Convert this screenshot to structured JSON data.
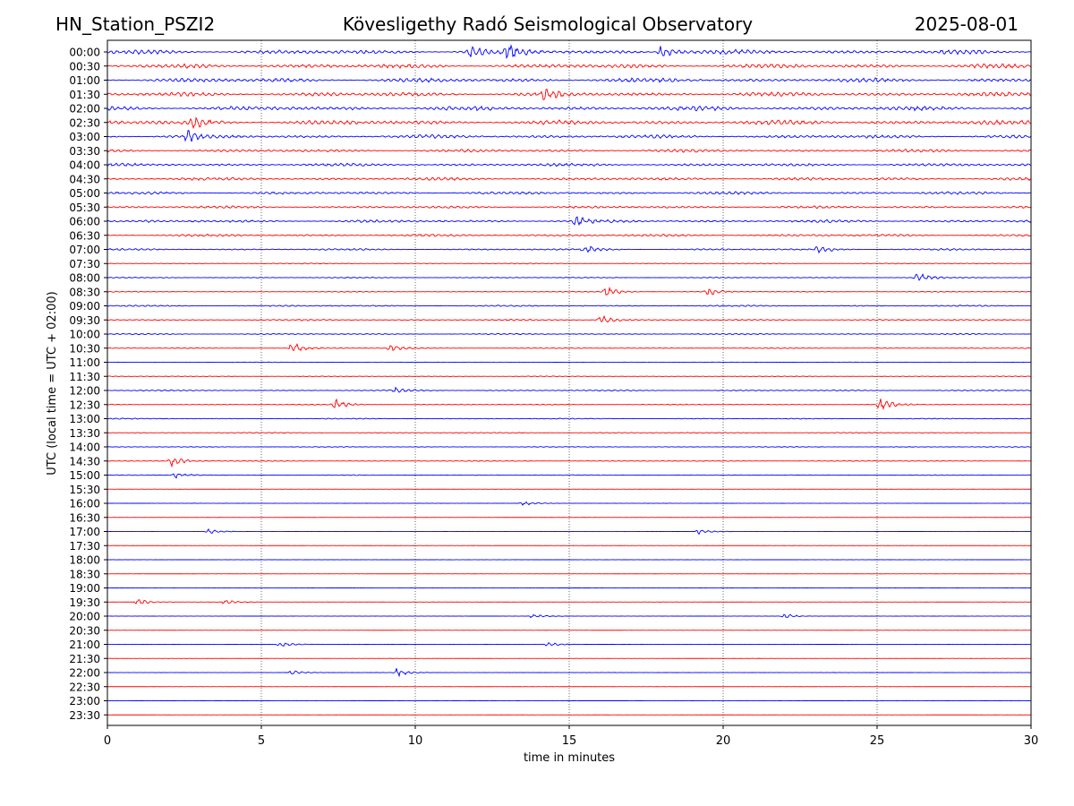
{
  "header": {
    "station": "HN_Station_PSZI2",
    "observatory": "Kövesligethy Radó Seismological Observatory",
    "date": "2025-08-01"
  },
  "colors": {
    "even_trace": "#0000ff",
    "odd_trace": "#ff0000",
    "axes": "#000000",
    "grid": "#000000"
  },
  "chart_data": {
    "type": "line",
    "title": "Kövesligethy Radó Seismological Observatory",
    "xlabel": "time in minutes",
    "ylabel": "UTC (local time = UTC + 02:00)",
    "xlim": [
      0,
      30
    ],
    "x_ticks": [
      "0",
      "5",
      "10",
      "15",
      "20",
      "25",
      "30"
    ],
    "grid": "vertical dotted at 5-minute ticks",
    "row_labels": [
      "00:00",
      "00:30",
      "01:00",
      "01:30",
      "02:00",
      "02:30",
      "03:00",
      "03:30",
      "04:00",
      "04:30",
      "05:00",
      "05:30",
      "06:00",
      "06:30",
      "07:00",
      "07:30",
      "08:00",
      "08:30",
      "09:00",
      "09:30",
      "10:00",
      "10:30",
      "11:00",
      "11:30",
      "12:00",
      "12:30",
      "13:00",
      "13:30",
      "14:00",
      "14:30",
      "15:00",
      "15:30",
      "16:00",
      "16:30",
      "17:00",
      "17:30",
      "18:00",
      "18:30",
      "19:00",
      "19:30",
      "20:00",
      "20:30",
      "21:00",
      "21:30",
      "22:00",
      "22:30",
      "23:00",
      "23:30"
    ],
    "row_activity": [
      0.9,
      0.85,
      0.85,
      0.85,
      0.9,
      0.9,
      0.7,
      0.6,
      0.6,
      0.6,
      0.55,
      0.5,
      0.55,
      0.5,
      0.35,
      0.2,
      0.2,
      0.2,
      0.3,
      0.3,
      0.25,
      0.2,
      0.1,
      0.15,
      0.25,
      0.2,
      0.2,
      0.2,
      0.15,
      0.2,
      0.15,
      0.05,
      0.05,
      0.05,
      0.05,
      0.03,
      0.03,
      0.04,
      0.05,
      0.05,
      0.04,
      0.05,
      0.05,
      0.05,
      0.05,
      0.03,
      0.03,
      0.03
    ],
    "events": [
      {
        "row": "00:00",
        "t": 13.0,
        "amp": 9
      },
      {
        "row": "00:00",
        "t": 18.0,
        "amp": 9
      },
      {
        "row": "00:00",
        "t": 11.8,
        "amp": 6
      },
      {
        "row": "01:30",
        "t": 14.2,
        "amp": 6
      },
      {
        "row": "02:30",
        "t": 2.8,
        "amp": 6
      },
      {
        "row": "03:00",
        "t": 2.6,
        "amp": 6
      },
      {
        "row": "06:00",
        "t": 15.2,
        "amp": 6
      },
      {
        "row": "07:00",
        "t": 15.5,
        "amp": 5
      },
      {
        "row": "07:00",
        "t": 23.1,
        "amp": 5
      },
      {
        "row": "08:00",
        "t": 26.3,
        "amp": 6
      },
      {
        "row": "08:30",
        "t": 16.2,
        "amp": 7
      },
      {
        "row": "08:30",
        "t": 19.5,
        "amp": 5
      },
      {
        "row": "09:30",
        "t": 16.0,
        "amp": 7
      },
      {
        "row": "10:30",
        "t": 6.0,
        "amp": 7
      },
      {
        "row": "10:30",
        "t": 9.2,
        "amp": 4
      },
      {
        "row": "12:00",
        "t": 9.4,
        "amp": 4
      },
      {
        "row": "12:30",
        "t": 25.1,
        "amp": 8
      },
      {
        "row": "12:30",
        "t": 7.4,
        "amp": 6
      },
      {
        "row": "14:30",
        "t": 2.1,
        "amp": 7
      },
      {
        "row": "15:00",
        "t": 2.2,
        "amp": 4
      },
      {
        "row": "16:00",
        "t": 13.5,
        "amp": 3
      },
      {
        "row": "17:00",
        "t": 3.3,
        "amp": 3
      },
      {
        "row": "17:00",
        "t": 19.2,
        "amp": 3
      },
      {
        "row": "19:30",
        "t": 1.0,
        "amp": 4
      },
      {
        "row": "19:30",
        "t": 3.8,
        "amp": 3
      },
      {
        "row": "20:00",
        "t": 13.8,
        "amp": 3
      },
      {
        "row": "20:00",
        "t": 22.0,
        "amp": 3
      },
      {
        "row": "21:00",
        "t": 5.6,
        "amp": 3
      },
      {
        "row": "21:00",
        "t": 14.3,
        "amp": 3
      },
      {
        "row": "22:00",
        "t": 6.0,
        "amp": 3
      },
      {
        "row": "22:00",
        "t": 9.4,
        "amp": 6
      }
    ]
  }
}
